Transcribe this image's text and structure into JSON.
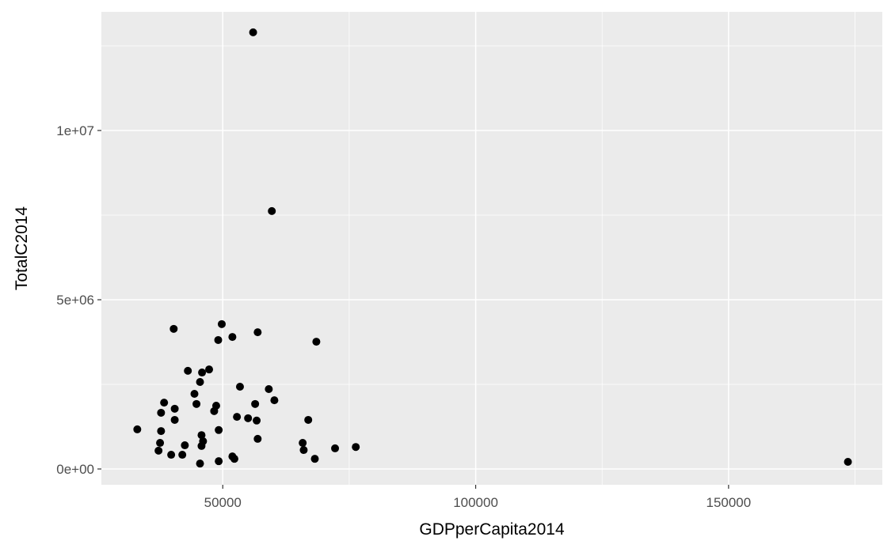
{
  "chart_data": {
    "type": "scatter",
    "x_label": "GDPperCapita2014",
    "y_label": "TotalC2014",
    "x": [
      56000,
      59700,
      40300,
      49800,
      56900,
      51900,
      49100,
      68500,
      43100,
      47300,
      45900,
      45500,
      44400,
      53400,
      59100,
      38400,
      44800,
      48700,
      56400,
      60200,
      40500,
      48300,
      37800,
      52800,
      55000,
      40500,
      56700,
      66900,
      33100,
      37800,
      49200,
      45800,
      56900,
      37600,
      46100,
      42500,
      45800,
      65800,
      76300,
      72200,
      37300,
      66000,
      39800,
      42000,
      51900,
      52300,
      49200,
      68200,
      45500,
      173600
    ],
    "y": [
      12900000,
      7620000,
      4140000,
      4280000,
      4040000,
      3900000,
      3810000,
      3760000,
      2900000,
      2940000,
      2850000,
      2570000,
      2220000,
      2430000,
      2360000,
      1960000,
      1920000,
      1870000,
      1920000,
      2030000,
      1780000,
      1710000,
      1660000,
      1540000,
      1500000,
      1450000,
      1430000,
      1450000,
      1170000,
      1120000,
      1150000,
      1000000,
      890000,
      770000,
      820000,
      700000,
      680000,
      770000,
      650000,
      610000,
      540000,
      560000,
      420000,
      420000,
      370000,
      300000,
      230000,
      300000,
      160000,
      210000
    ],
    "color": "#000000",
    "xlim": [
      26000,
      180400
    ],
    "ylim": [
      -467000,
      13505000
    ],
    "xticks": [
      50000,
      100000,
      150000
    ],
    "yticks": [
      {
        "value": 0,
        "label": "0e+00"
      },
      {
        "value": 5000000,
        "label": "5e+06"
      },
      {
        "value": 10000000,
        "label": "1e+07"
      }
    ],
    "grid": true
  }
}
